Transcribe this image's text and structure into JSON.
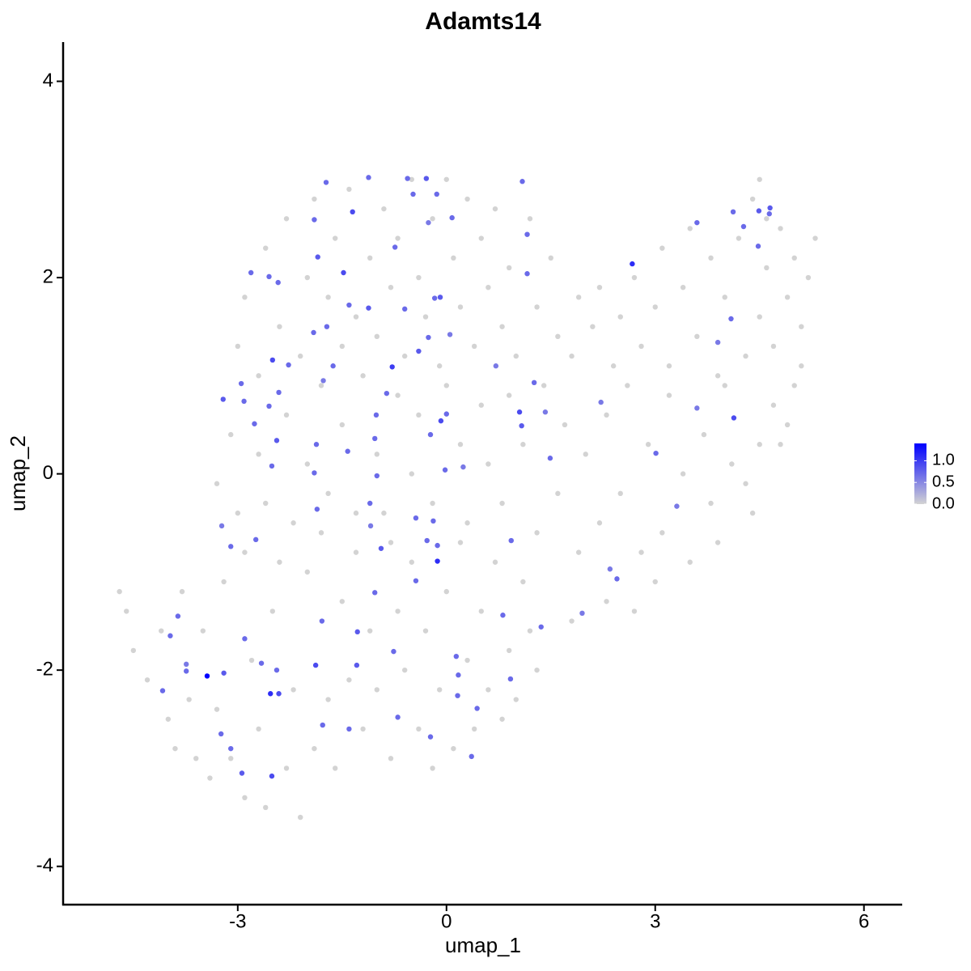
{
  "chart_data": {
    "type": "scatter",
    "title": "Adamts14",
    "x_label": "umap_1",
    "y_label": "umap_2",
    "xlim": [
      -5.51,
      6.55
    ],
    "ylim": [
      -4.39,
      4.4
    ],
    "xticks": [
      -3,
      0,
      3,
      6
    ],
    "yticks": [
      -4,
      -2,
      0,
      2,
      4
    ],
    "color_low": "#d3d3d3",
    "color_high": "#0000ff",
    "colorbar_lim": [
      0,
      1.4
    ],
    "colorbar_ticks": [
      {
        "value": 0,
        "label": "0.0"
      },
      {
        "value": 0.5,
        "label": "0.5"
      },
      {
        "value": 1,
        "label": "1.0"
      }
    ],
    "x": [
      -4.7,
      -4.6,
      -4.5,
      -4.3,
      -4.1,
      -4.0,
      -3.9,
      -3.8,
      -3.7,
      -3.6,
      -3.5,
      -3.4,
      -3.3,
      -3.2,
      -3.1,
      -3.0,
      -2.9,
      -2.8,
      -2.7,
      -2.6,
      -2.5,
      -2.4,
      -2.3,
      -2.2,
      -2.1,
      -2.0,
      -1.9,
      -1.8,
      -1.7,
      -1.6,
      -1.5,
      -1.4,
      -1.3,
      -1.2,
      -1.1,
      -1.0,
      -0.9,
      -0.8,
      -0.7,
      -0.6,
      -0.5,
      -0.4,
      -0.3,
      -0.2,
      -0.1,
      0.0,
      0.1,
      0.2,
      0.3,
      0.4,
      0.5,
      0.6,
      0.7,
      0.8,
      0.9,
      1.0,
      1.1,
      1.2,
      1.3,
      -3.3,
      -3.1,
      -2.9,
      -2.7,
      -2.6,
      -2.3,
      -2.2,
      -2.0,
      -1.8,
      -1.7,
      -1.5,
      -1.3,
      -1.2,
      -1.0,
      -0.8,
      -0.7,
      -0.5,
      -0.4,
      -0.2,
      0.0,
      0.2,
      0.3,
      0.5,
      0.6,
      0.8,
      0.9,
      1.1,
      1.3,
      1.4,
      1.6,
      1.7,
      1.9,
      2.0,
      2.2,
      2.3,
      2.5,
      2.6,
      2.8,
      2.9,
      3.1,
      3.2,
      3.4,
      3.5,
      3.7,
      3.8,
      4.0,
      4.1,
      4.3,
      4.5,
      4.7,
      4.9,
      5.0,
      3.0,
      2.7,
      2.3,
      1.8,
      -3.0,
      -2.9,
      -2.7,
      -2.6,
      -2.4,
      -2.3,
      -2.1,
      -2.0,
      -1.9,
      -1.7,
      -1.6,
      -1.5,
      -1.4,
      -1.3,
      -1.1,
      -1.0,
      -0.9,
      -0.8,
      -0.7,
      -0.6,
      -0.5,
      -0.4,
      -0.3,
      -0.2,
      -0.1,
      0.0,
      0.1,
      0.2,
      0.3,
      0.4,
      0.5,
      0.6,
      0.7,
      0.8,
      0.9,
      1.0,
      1.2,
      1.3,
      1.5,
      1.6,
      1.8,
      1.9,
      2.1,
      2.2,
      2.4,
      2.5,
      2.7,
      2.8,
      3.0,
      3.1,
      3.2,
      3.4,
      3.5,
      3.6,
      3.8,
      3.9,
      4.0,
      4.2,
      4.3,
      4.4,
      4.5,
      4.6,
      4.7,
      4.8,
      4.9,
      5.0,
      5.1,
      5.2,
      5.3,
      4.5,
      4.6,
      5.1,
      4.8,
      4.4,
      3.9,
      -1.35,
      -1.73,
      -1.12,
      -0.56,
      -0.29,
      -0.14,
      1.09,
      -0.48,
      0.08,
      -1.9,
      -0.26,
      -0.74,
      -1.85,
      -1.48,
      -2.81,
      -2.55,
      -2.42,
      1.16,
      1.16,
      2.67,
      3.6,
      4.12,
      4.27,
      4.49,
      4.65,
      4.64,
      4.48,
      4.09,
      3.9,
      4.13,
      3.6,
      2.22,
      3.01,
      3.31,
      2.45,
      2.35,
      1.95,
      1.36,
      0.92,
      0.44,
      0.36,
      0.17,
      0.16,
      -0.23,
      -0.7,
      -0.76,
      -1.29,
      -1.28,
      -1.79,
      -1.88,
      -1.78,
      -1.4,
      -2.44,
      -2.41,
      -2.53,
      -2.66,
      -2.51,
      -2.94,
      -3.2,
      -3.44,
      -3.74,
      -3.74,
      -3.86,
      -4.08,
      -3.97,
      -3.24,
      -3.1,
      -2.9,
      -2.74,
      -3.1,
      -3.23,
      -2.51,
      -2.44,
      -2.76,
      -2.91,
      -3.21,
      -2.95,
      -2.55,
      -2.41,
      -2.5,
      -2.27,
      -1.91,
      -1.72,
      -1.63,
      -1.77,
      -1.87,
      -1.9,
      -1.86,
      -1.42,
      -1.0,
      -1.1,
      -1.09,
      -0.94,
      -1.03,
      -0.44,
      -0.13,
      -0.13,
      -0.28,
      -0.44,
      -0.19,
      -0.02,
      0.24,
      -0.08,
      0.0,
      -0.23,
      -0.4,
      -0.26,
      0.05,
      -0.09,
      -0.17,
      -0.6,
      -0.78,
      -0.86,
      -1.01,
      -1.03,
      -1.4,
      -1.12,
      0.71,
      1.26,
      1.05,
      1.08,
      0.93,
      1.42,
      1.49,
      0.81,
      0.14
    ],
    "y": [
      -1.2,
      -1.4,
      -1.8,
      -2.1,
      -1.6,
      -2.5,
      -2.8,
      -1.2,
      -2.3,
      -2.9,
      -1.6,
      -3.1,
      -2.4,
      -1.1,
      -2.9,
      -0.4,
      -3.3,
      -1.9,
      -2.6,
      -3.4,
      -1.4,
      -0.9,
      -3.0,
      -2.2,
      -3.5,
      -1.0,
      -2.8,
      -0.6,
      -2.3,
      -3.0,
      -1.3,
      -2.1,
      -0.8,
      -2.6,
      -1.6,
      -2.2,
      -0.4,
      -2.9,
      -1.4,
      -2.0,
      -0.9,
      -2.6,
      -1.6,
      -3.0,
      -2.2,
      -1.2,
      -2.8,
      -0.7,
      -1.9,
      -2.6,
      -1.4,
      -2.2,
      -0.9,
      -2.5,
      -1.8,
      -2.3,
      -1.1,
      -1.6,
      -2.0,
      -0.1,
      0.4,
      -0.8,
      0.2,
      -0.3,
      0.6,
      -0.5,
      0.1,
      0.9,
      -0.2,
      0.5,
      -0.4,
      1.0,
      0.2,
      -0.7,
      0.8,
      0.0,
      0.6,
      -0.3,
      0.9,
      0.3,
      -0.5,
      0.7,
      0.1,
      -0.3,
      0.8,
      0.3,
      -0.6,
      0.9,
      -0.2,
      0.5,
      -0.8,
      0.2,
      -0.5,
      0.6,
      -0.2,
      0.9,
      -0.8,
      0.3,
      -0.6,
      0.8,
      0.0,
      -0.9,
      0.4,
      -0.3,
      0.9,
      0.1,
      -0.1,
      0.3,
      0.7,
      0.5,
      0.9,
      -1.1,
      -1.4,
      -1.3,
      -1.5,
      1.3,
      1.8,
      1.0,
      2.3,
      1.5,
      2.6,
      1.2,
      2.0,
      2.8,
      1.8,
      2.4,
      1.3,
      2.9,
      1.6,
      2.2,
      1.4,
      2.7,
      1.9,
      2.4,
      1.2,
      3.0,
      2.0,
      1.6,
      2.6,
      1.1,
      3.0,
      2.2,
      1.7,
      2.8,
      1.3,
      2.4,
      1.9,
      2.7,
      1.5,
      2.1,
      1.2,
      2.6,
      1.7,
      2.2,
      1.4,
      1.2,
      1.8,
      1.5,
      1.9,
      1.1,
      1.6,
      2.0,
      1.3,
      1.7,
      2.3,
      1.1,
      1.9,
      2.5,
      1.4,
      2.2,
      1.0,
      1.8,
      2.4,
      1.2,
      2.8,
      1.6,
      2.1,
      1.3,
      2.5,
      1.8,
      2.2,
      1.5,
      2.0,
      2.4,
      3.0,
      2.6,
      1.1,
      0.3,
      -0.4,
      -0.7,
      2.67,
      2.97,
      3.02,
      3.01,
      3.01,
      2.85,
      2.98,
      2.85,
      2.61,
      2.59,
      2.56,
      2.31,
      2.21,
      2.05,
      2.05,
      2.01,
      1.95,
      2.04,
      2.44,
      2.14,
      2.56,
      2.67,
      2.52,
      2.68,
      2.71,
      2.65,
      2.32,
      1.58,
      1.34,
      0.57,
      0.67,
      0.73,
      0.21,
      -0.33,
      -1.07,
      -0.97,
      -1.42,
      -1.56,
      -2.09,
      -2.39,
      -2.88,
      -2.05,
      -2.26,
      -2.68,
      -2.48,
      -1.81,
      -1.95,
      -1.61,
      -1.5,
      -1.95,
      -2.56,
      -2.6,
      -2.0,
      -2.24,
      -2.24,
      -1.93,
      -3.08,
      -3.05,
      -2.03,
      -2.06,
      -2.01,
      -1.94,
      -1.45,
      -2.21,
      -1.65,
      -2.65,
      -2.8,
      -1.68,
      -0.67,
      -0.74,
      -0.53,
      0.08,
      0.34,
      0.51,
      0.74,
      0.76,
      0.92,
      0.69,
      0.83,
      1.16,
      1.11,
      1.44,
      1.5,
      1.1,
      0.95,
      0.3,
      0.01,
      -0.36,
      0.23,
      -0.02,
      -0.3,
      -0.53,
      -0.76,
      -1.21,
      -1.09,
      -0.73,
      -0.89,
      -0.68,
      -0.45,
      -0.48,
      0.04,
      0.07,
      0.54,
      0.61,
      0.4,
      1.25,
      1.39,
      1.42,
      1.8,
      1.79,
      1.68,
      1.09,
      0.82,
      0.6,
      0.36,
      1.72,
      1.69,
      1.1,
      0.93,
      0.63,
      0.49,
      -0.68,
      0.63,
      0.16,
      -1.44,
      -1.86
    ],
    "values": [
      0,
      0,
      0,
      0,
      0,
      0,
      0,
      0,
      0,
      0,
      0,
      0,
      0,
      0,
      0,
      0,
      0,
      0,
      0,
      0,
      0,
      0,
      0,
      0,
      0,
      0,
      0,
      0,
      0,
      0,
      0,
      0,
      0,
      0,
      0,
      0,
      0,
      0,
      0,
      0,
      0,
      0,
      0,
      0,
      0,
      0,
      0,
      0,
      0,
      0,
      0,
      0,
      0,
      0,
      0,
      0,
      0,
      0,
      0,
      0,
      0,
      0,
      0,
      0,
      0,
      0,
      0,
      0,
      0,
      0,
      0,
      0,
      0,
      0,
      0,
      0,
      0,
      0,
      0,
      0,
      0,
      0,
      0,
      0,
      0,
      0,
      0,
      0,
      0,
      0,
      0,
      0,
      0,
      0,
      0,
      0,
      0,
      0,
      0,
      0,
      0,
      0,
      0,
      0,
      0,
      0,
      0,
      0,
      0,
      0,
      0,
      0,
      0,
      0,
      0,
      0,
      0,
      0,
      0,
      0,
      0,
      0,
      0,
      0,
      0,
      0,
      0,
      0,
      0,
      0,
      0,
      0,
      0,
      0,
      0,
      0,
      0,
      0,
      0,
      0,
      0,
      0,
      0,
      0,
      0,
      0,
      0,
      0,
      0,
      0,
      0,
      0,
      0,
      0,
      0,
      0,
      0,
      0,
      0,
      0,
      0,
      0,
      0,
      0,
      0,
      0,
      0,
      0,
      0,
      0,
      0,
      0,
      0,
      0,
      0,
      0,
      0,
      0,
      0,
      0,
      0,
      0,
      0,
      0,
      0,
      0,
      0,
      0,
      0,
      0,
      0.9,
      0.7,
      0.7,
      0.7,
      0.8,
      0.7,
      0.7,
      0.7,
      0.7,
      0.7,
      0.6,
      0.7,
      0.8,
      0.9,
      0.7,
      0.7,
      0.7,
      0.7,
      0.7,
      1.1,
      0.7,
      0.7,
      0.7,
      0.8,
      0.8,
      0.7,
      0.7,
      0.7,
      0.6,
      0.9,
      0.6,
      0.6,
      0.7,
      0.6,
      0.7,
      0.6,
      0.6,
      0.7,
      0.7,
      0.7,
      0.7,
      0.7,
      0.7,
      0.7,
      0.7,
      0.7,
      0.8,
      0.8,
      0.7,
      0.9,
      0.7,
      0.7,
      0.7,
      0.9,
      1.1,
      0.7,
      0.9,
      0.8,
      0.8,
      1.4,
      0.7,
      0.6,
      0.7,
      0.7,
      0.7,
      0.7,
      0.7,
      0.7,
      0.7,
      0.7,
      0.6,
      0.7,
      0.8,
      0.7,
      0.7,
      0.8,
      0.7,
      0.7,
      0.7,
      0.9,
      0.7,
      0.7,
      0.7,
      0.7,
      0.6,
      0.7,
      0.7,
      0.7,
      0.7,
      0.7,
      0.7,
      0.6,
      0.8,
      0.7,
      0.7,
      0.7,
      1.1,
      0.7,
      0.7,
      0.7,
      0.7,
      0.6,
      0.9,
      0.7,
      0.7,
      0.8,
      0.7,
      0.6,
      0.8,
      0.7,
      0.7,
      1.0,
      0.7,
      0.7,
      0.7,
      0.7,
      0.8,
      0.6,
      0.7,
      0.9,
      0.8,
      0.7,
      0.6,
      0.7,
      0.7,
      0.7
    ]
  }
}
